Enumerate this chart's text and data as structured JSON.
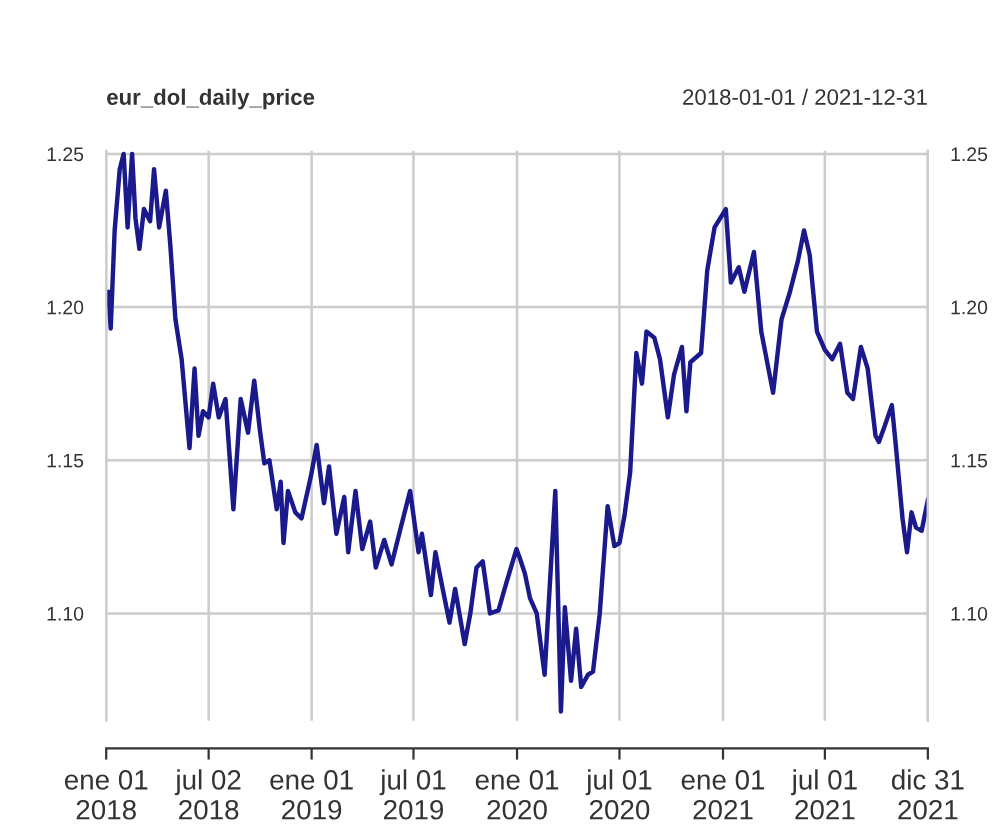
{
  "chart_data": {
    "type": "line",
    "title": "eur_dol_daily_price",
    "subtitle": "2018-01-01 / 2021-12-31",
    "x": [
      "2018-01-01",
      "2018-01-05",
      "2018-01-09",
      "2018-01-16",
      "2018-01-25",
      "2018-02-01",
      "2018-02-08",
      "2018-02-16",
      "2018-02-22",
      "2018-03-01",
      "2018-03-09",
      "2018-03-20",
      "2018-03-27",
      "2018-04-05",
      "2018-04-17",
      "2018-04-25",
      "2018-05-04",
      "2018-05-15",
      "2018-05-29",
      "2018-06-07",
      "2018-06-14",
      "2018-06-22",
      "2018-07-02",
      "2018-07-10",
      "2018-07-20",
      "2018-08-01",
      "2018-08-15",
      "2018-08-28",
      "2018-09-10",
      "2018-09-21",
      "2018-10-01",
      "2018-10-09",
      "2018-10-18",
      "2018-10-31",
      "2018-11-07",
      "2018-11-12",
      "2018-11-20",
      "2018-12-03",
      "2018-12-14",
      "2018-12-31",
      "2019-01-10",
      "2019-01-23",
      "2019-02-01",
      "2019-02-14",
      "2019-02-28",
      "2019-03-07",
      "2019-03-20",
      "2019-04-01",
      "2019-04-15",
      "2019-04-25",
      "2019-05-10",
      "2019-05-23",
      "2019-06-07",
      "2019-06-25",
      "2019-07-10",
      "2019-07-16",
      "2019-08-01",
      "2019-08-09",
      "2019-08-23",
      "2019-09-03",
      "2019-09-13",
      "2019-09-30",
      "2019-10-10",
      "2019-10-21",
      "2019-11-01",
      "2019-11-14",
      "2019-11-29",
      "2019-12-13",
      "2019-12-31",
      "2020-01-06",
      "2020-01-15",
      "2020-01-24",
      "2020-02-05",
      "2020-02-19",
      "2020-03-09",
      "2020-03-19",
      "2020-03-26",
      "2020-04-06",
      "2020-04-15",
      "2020-04-24",
      "2020-05-06",
      "2020-05-15",
      "2020-05-27",
      "2020-06-10",
      "2020-06-22",
      "2020-07-01",
      "2020-07-10",
      "2020-07-20",
      "2020-07-31",
      "2020-08-10",
      "2020-08-18",
      "2020-09-01",
      "2020-09-11",
      "2020-09-25",
      "2020-10-06",
      "2020-10-20",
      "2020-10-28",
      "2020-11-04",
      "2020-11-23",
      "2020-12-04",
      "2020-12-17",
      "2021-01-06",
      "2021-01-15",
      "2021-01-29",
      "2021-02-08",
      "2021-02-25",
      "2021-03-10",
      "2021-03-31",
      "2021-04-15",
      "2021-04-30",
      "2021-05-14",
      "2021-05-25",
      "2021-06-04",
      "2021-06-17",
      "2021-07-01",
      "2021-07-14",
      "2021-07-28",
      "2021-08-10",
      "2021-08-20",
      "2021-09-03",
      "2021-09-15",
      "2021-09-29",
      "2021-10-05",
      "2021-10-15",
      "2021-10-28",
      "2021-11-04",
      "2021-11-16",
      "2021-11-24",
      "2021-12-02",
      "2021-12-10",
      "2021-12-20",
      "2021-12-31"
    ],
    "series": [
      {
        "color": "#1a1a8c",
        "values": [
          1.201,
          1.205,
          1.193,
          1.225,
          1.245,
          1.25,
          1.226,
          1.25,
          1.229,
          1.219,
          1.232,
          1.228,
          1.245,
          1.226,
          1.238,
          1.22,
          1.196,
          1.183,
          1.154,
          1.18,
          1.158,
          1.166,
          1.164,
          1.175,
          1.164,
          1.17,
          1.134,
          1.17,
          1.159,
          1.176,
          1.16,
          1.149,
          1.15,
          1.134,
          1.143,
          1.123,
          1.14,
          1.133,
          1.131,
          1.145,
          1.155,
          1.136,
          1.148,
          1.126,
          1.138,
          1.12,
          1.14,
          1.121,
          1.13,
          1.115,
          1.124,
          1.116,
          1.127,
          1.14,
          1.12,
          1.126,
          1.106,
          1.12,
          1.107,
          1.097,
          1.108,
          1.09,
          1.1,
          1.115,
          1.117,
          1.1,
          1.101,
          1.11,
          1.121,
          1.118,
          1.113,
          1.105,
          1.1,
          1.08,
          1.14,
          1.068,
          1.102,
          1.078,
          1.095,
          1.076,
          1.08,
          1.081,
          1.1,
          1.135,
          1.122,
          1.123,
          1.132,
          1.146,
          1.185,
          1.175,
          1.192,
          1.19,
          1.183,
          1.164,
          1.178,
          1.187,
          1.166,
          1.182,
          1.185,
          1.212,
          1.226,
          1.232,
          1.208,
          1.213,
          1.205,
          1.218,
          1.192,
          1.172,
          1.196,
          1.205,
          1.215,
          1.225,
          1.217,
          1.192,
          1.186,
          1.183,
          1.188,
          1.172,
          1.17,
          1.187,
          1.18,
          1.158,
          1.156,
          1.161,
          1.168,
          1.155,
          1.131,
          1.12,
          1.133,
          1.128,
          1.127,
          1.137
        ]
      }
    ],
    "xlim": [
      "2018-01-01",
      "2021-12-31"
    ],
    "xticks": [
      {
        "value": "2018-01-01",
        "label": "ene 01\n2018"
      },
      {
        "value": "2018-07-02",
        "label": "jul 02\n2018"
      },
      {
        "value": "2019-01-01",
        "label": "ene 01\n2019"
      },
      {
        "value": "2019-07-01",
        "label": "jul 01\n2019"
      },
      {
        "value": "2020-01-01",
        "label": "ene 01\n2020"
      },
      {
        "value": "2020-07-01",
        "label": "jul 01\n2020"
      },
      {
        "value": "2021-01-01",
        "label": "ene 01\n2021"
      },
      {
        "value": "2021-07-01",
        "label": "jul 01\n2021"
      },
      {
        "value": "2021-12-31",
        "label": "dic 31\n2021"
      }
    ],
    "ylim": [
      1.065,
      1.251
    ],
    "yticks": [
      {
        "value": 1.1,
        "label": "1.10"
      },
      {
        "value": 1.15,
        "label": "1.15"
      },
      {
        "value": 1.2,
        "label": "1.20"
      },
      {
        "value": 1.25,
        "label": "1.25"
      }
    ],
    "y2lim": [
      1.065,
      1.251
    ],
    "y2ticks": [
      {
        "value": 1.1,
        "label": "1.10"
      },
      {
        "value": 1.15,
        "label": "1.15"
      },
      {
        "value": 1.2,
        "label": "1.20"
      },
      {
        "value": 1.25,
        "label": "1.25"
      }
    ],
    "grid": true,
    "legend": false,
    "marker": "none",
    "line_style": "solid"
  }
}
